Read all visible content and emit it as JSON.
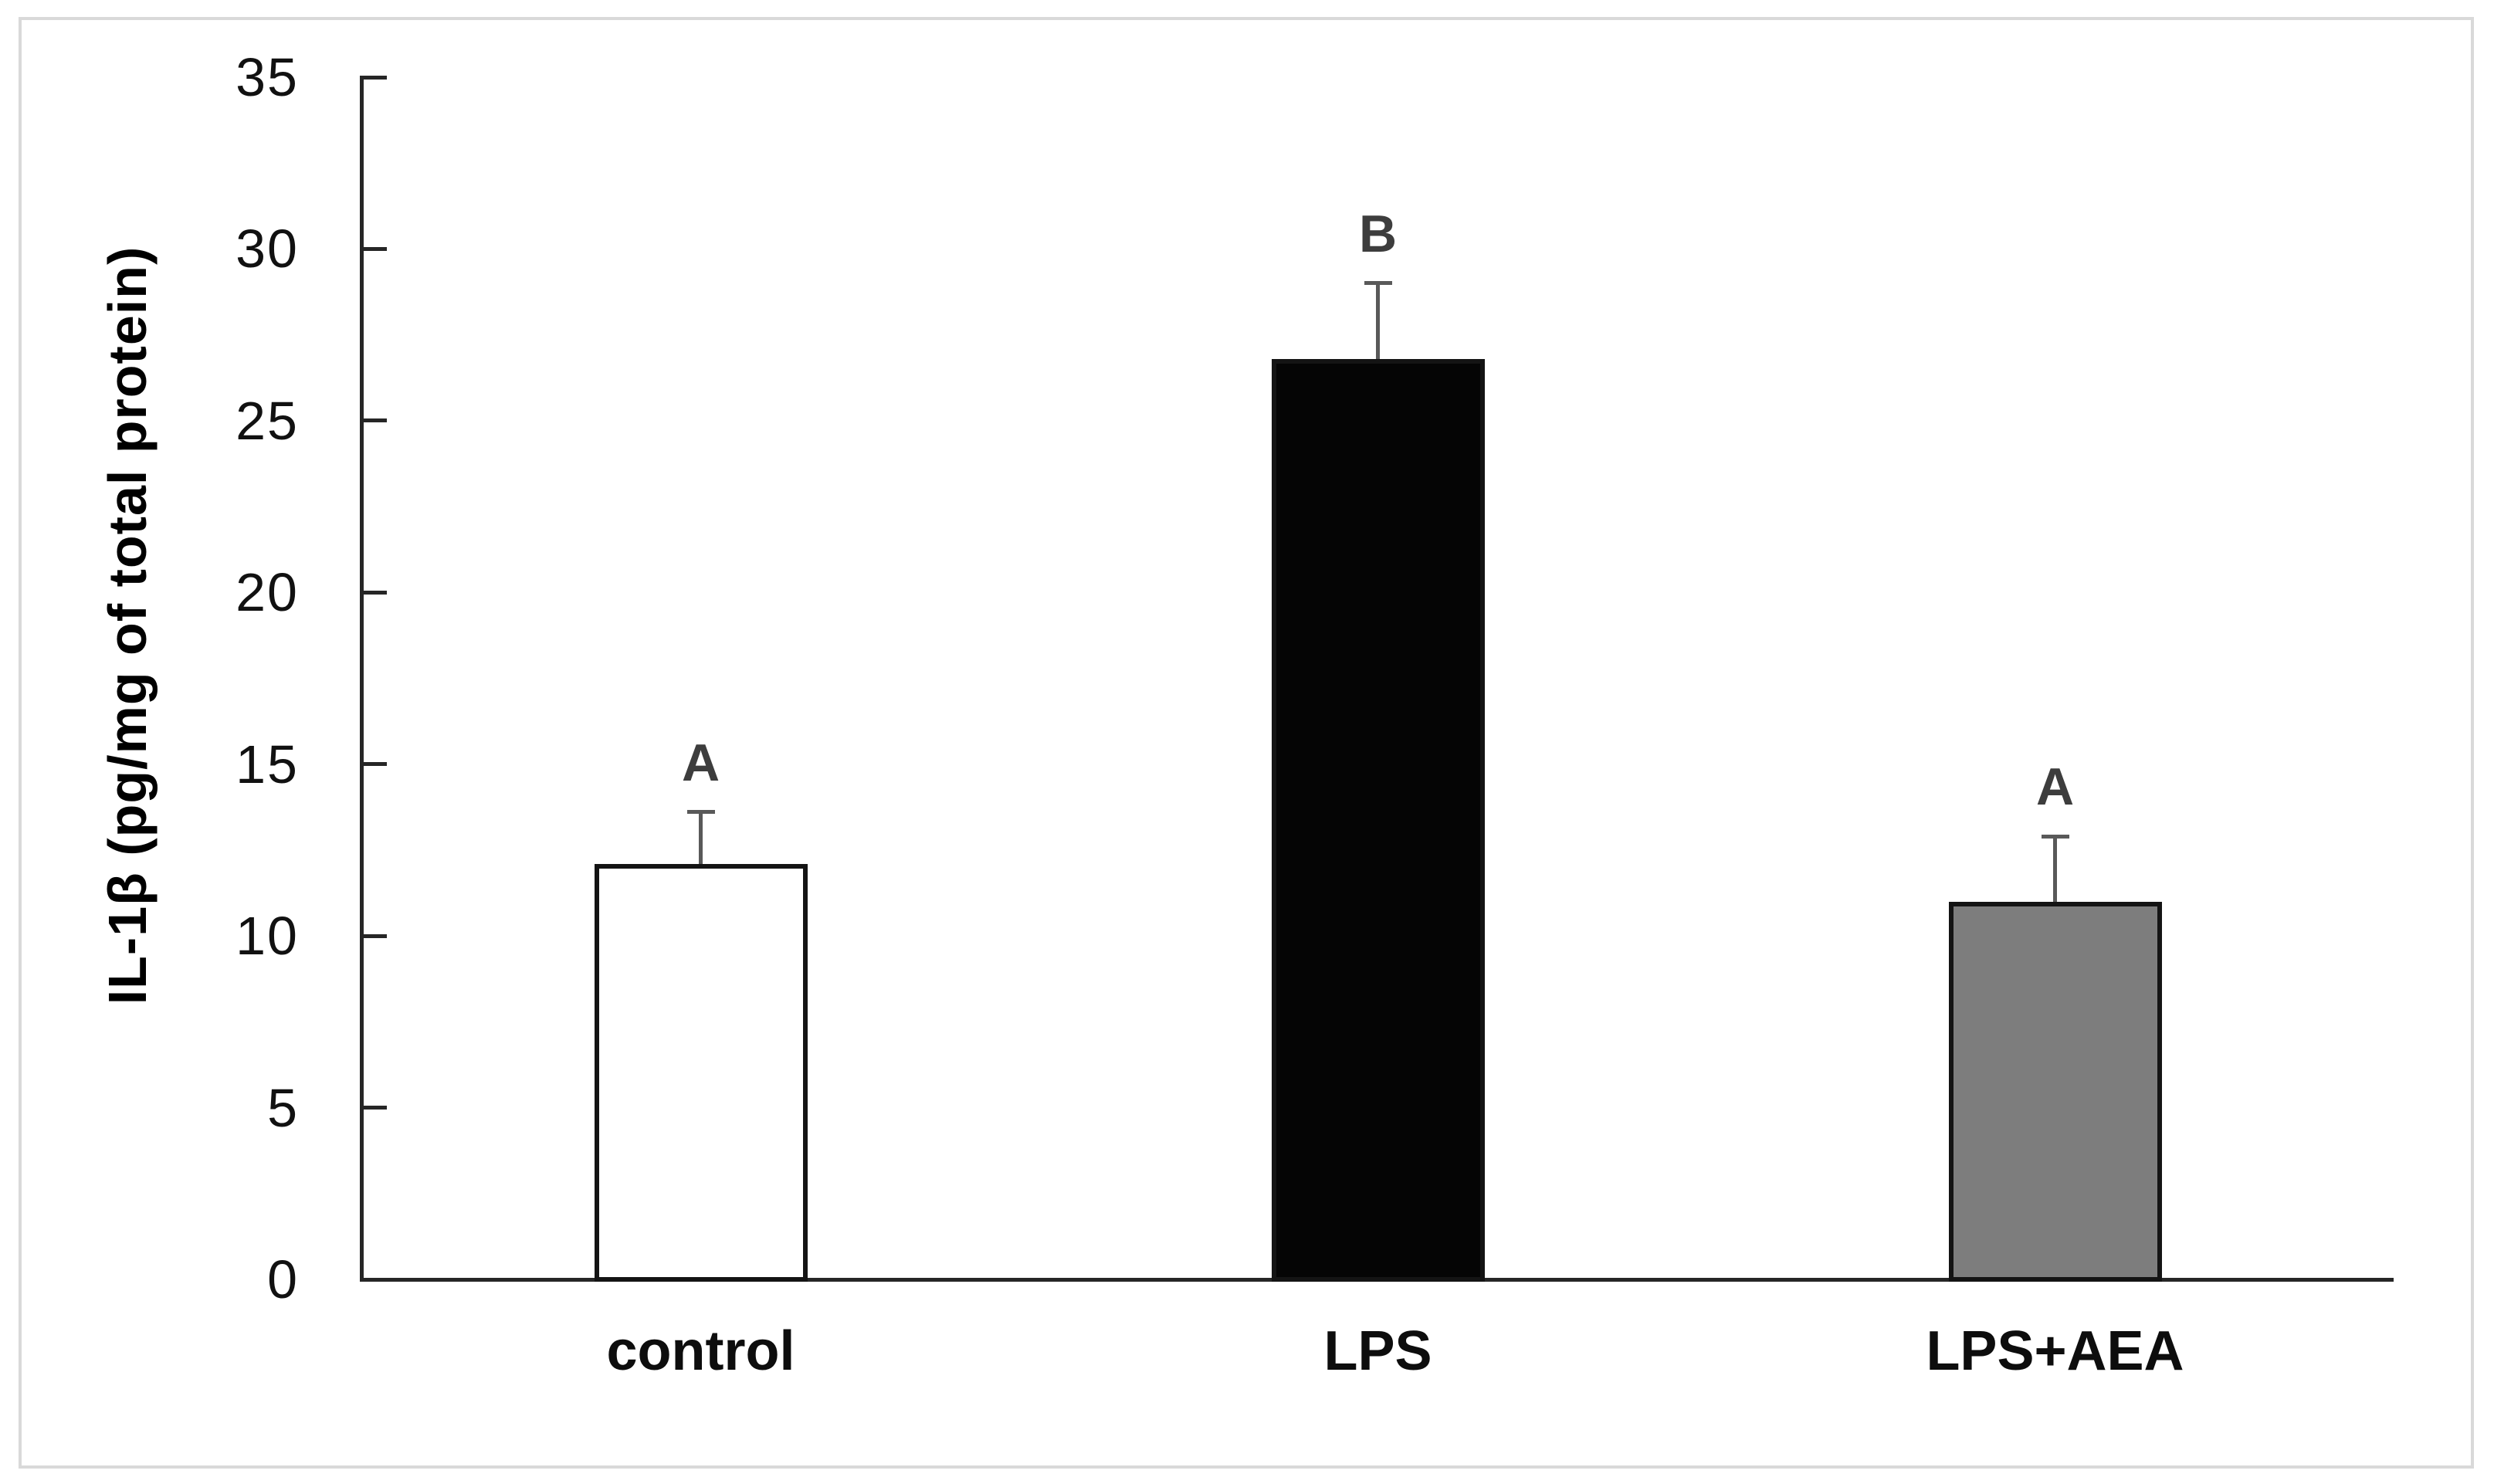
{
  "chart_data": {
    "type": "bar",
    "title": "",
    "xlabel": "",
    "ylabel": "IL-1β (pg/mg of total protein)",
    "categories": [
      "control",
      "LPS",
      "LPS+AEA"
    ],
    "values": [
      12.1,
      26.8,
      11.0
    ],
    "error_bars": {
      "direction": "upper",
      "values": [
        1.5,
        2.2,
        1.9
      ]
    },
    "significance_labels": [
      "A",
      "B",
      "A"
    ],
    "bar_fill_colors": [
      "#ffffff",
      "#050505",
      "#7d7d7d"
    ],
    "bar_border_color": "#141414",
    "ylim": [
      0,
      35
    ],
    "yticks": [
      0,
      5,
      10,
      15,
      20,
      25,
      30,
      35
    ],
    "grid": false,
    "legend": null,
    "error_bar_color": "#595959",
    "axis_color": "#262626",
    "frame_color": "#d9d9d9"
  }
}
